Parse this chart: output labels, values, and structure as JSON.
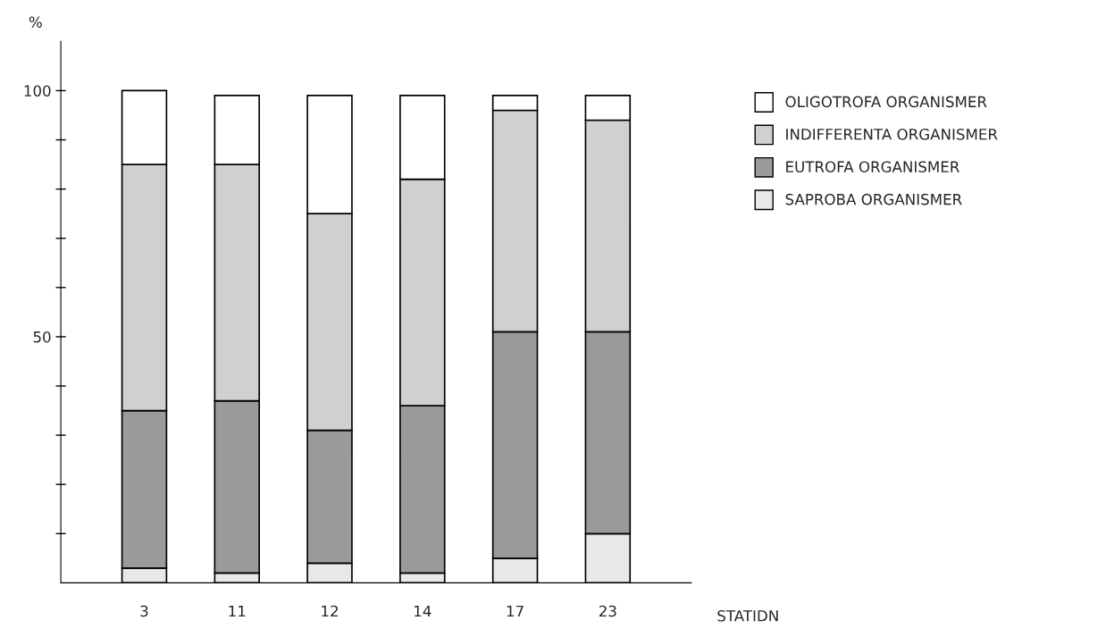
{
  "chart_data": {
    "type": "bar",
    "stacked": true,
    "ylabel": "%",
    "xlabel": "STATIDN",
    "categories": [
      "3",
      "11",
      "12",
      "14",
      "17",
      "23"
    ],
    "series": [
      {
        "name": "SAPROBA ORGANISMER",
        "color": "#e8e8e8",
        "values": [
          3,
          2,
          4,
          2,
          5,
          10
        ]
      },
      {
        "name": "EUTROFA ORGANISMER",
        "color": "#9a9a9a",
        "values": [
          32,
          35,
          27,
          34,
          46,
          41
        ]
      },
      {
        "name": "INDIFFERENTA ORGANISMER",
        "color": "#d0d0d0",
        "values": [
          50,
          48,
          44,
          46,
          45,
          43
        ]
      },
      {
        "name": "OLIGOTROFA ORGANISMER",
        "color": "#ffffff",
        "values": [
          15,
          14,
          24,
          17,
          3,
          5
        ]
      }
    ],
    "ylim": [
      0,
      110
    ],
    "yticks": [
      {
        "value": 10,
        "label": null
      },
      {
        "value": 20,
        "label": null
      },
      {
        "value": 30,
        "label": null
      },
      {
        "value": 40,
        "label": null
      },
      50,
      {
        "value": 60,
        "label": null
      },
      {
        "value": 70,
        "label": null
      },
      {
        "value": 80,
        "label": null
      },
      {
        "value": 90,
        "label": null
      },
      100
    ],
    "grid": false,
    "legend": "right"
  }
}
